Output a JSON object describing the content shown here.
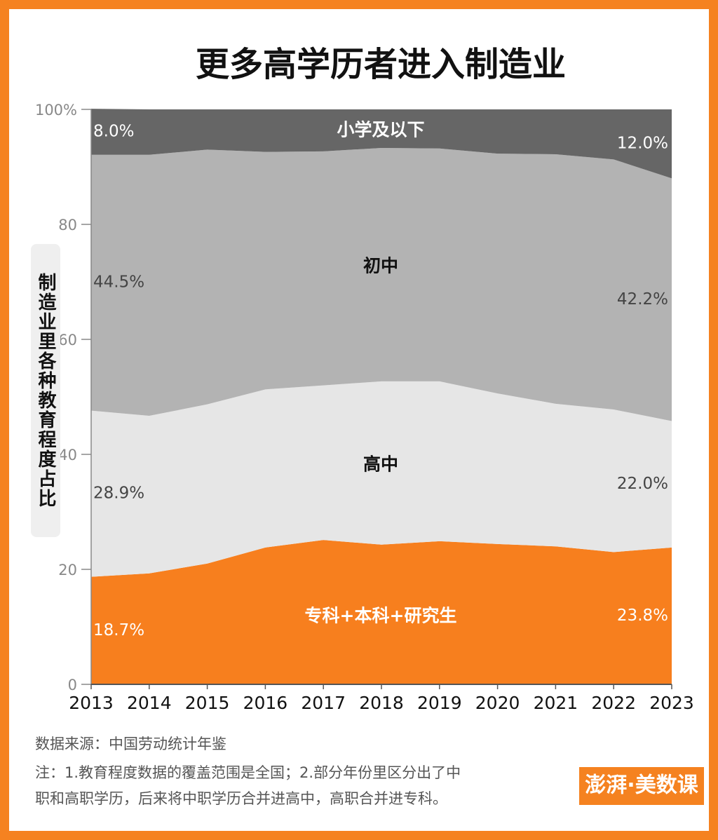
{
  "chart_data": {
    "type": "stacked_area",
    "title": "更多高学历者进入制造业",
    "y_label": "制造业里各种教育程度占比",
    "categories": [
      "2013",
      "2014",
      "2015",
      "2016",
      "2017",
      "2018",
      "2019",
      "2020",
      "2021",
      "2022",
      "2023"
    ],
    "series": [
      {
        "name": "专科+本科+研究生",
        "color": "#f77f1e",
        "label_color": "#ffffff",
        "values": [
          18.7,
          19.3,
          21.0,
          23.8,
          25.1,
          24.3,
          24.9,
          24.4,
          24.0,
          23.0,
          23.8
        ],
        "value_labels": [
          "18.7%",
          null,
          null,
          null,
          null,
          null,
          null,
          null,
          null,
          null,
          "23.8%"
        ]
      },
      {
        "name": "高中",
        "color": "#e6e6e6",
        "label_color": "#444444",
        "values": [
          28.9,
          27.4,
          27.7,
          27.5,
          26.9,
          28.4,
          27.8,
          26.2,
          24.8,
          24.8,
          22.0
        ],
        "value_labels": [
          "28.9%",
          null,
          null,
          null,
          null,
          null,
          null,
          null,
          null,
          null,
          "22.0%"
        ]
      },
      {
        "name": "初中",
        "color": "#b3b3b3",
        "label_color": "#444444",
        "values": [
          44.5,
          45.4,
          44.3,
          41.3,
          40.7,
          40.6,
          40.5,
          41.7,
          43.4,
          43.5,
          42.2
        ],
        "value_labels": [
          "44.5%",
          null,
          null,
          null,
          null,
          null,
          null,
          null,
          null,
          null,
          "42.2%"
        ]
      },
      {
        "name": "小学及以下",
        "color": "#666666",
        "label_color": "#ffffff",
        "values": [
          8.0,
          7.9,
          7.0,
          7.4,
          7.3,
          6.7,
          6.8,
          7.7,
          7.8,
          8.7,
          12.0
        ],
        "value_labels": [
          "8.0%",
          null,
          null,
          null,
          null,
          null,
          null,
          null,
          null,
          null,
          "12.0%"
        ]
      }
    ],
    "ylim": [
      0,
      100
    ],
    "yticks": [
      0,
      20,
      40,
      60,
      80,
      {
        "value": 100,
        "label": "100%"
      }
    ],
    "source": "数据来源：中国劳动统计年鉴",
    "note": [
      "注：1.教育程度数据的覆盖范围是全国；2.部分年份里区分出了中",
      "职和高职学历，后来将中职学历合并进高中，高职合并进专科。"
    ],
    "logo": "澎湃·美数课"
  }
}
